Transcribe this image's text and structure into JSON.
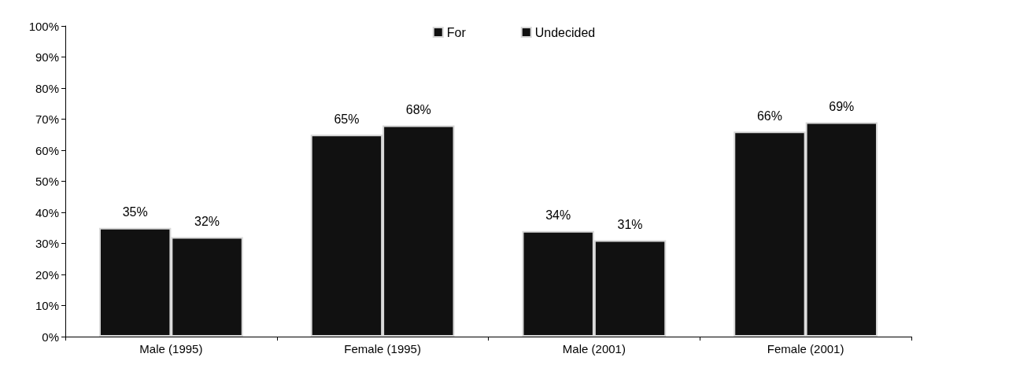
{
  "chart_data": {
    "type": "bar",
    "categories": [
      "Male (1995)",
      "Female (1995)",
      "Male (2001)",
      "Female (2001)"
    ],
    "series": [
      {
        "name": "For",
        "color": "#111111",
        "values": [
          35,
          65,
          34,
          66
        ],
        "value_labels": [
          "35%",
          "65%",
          "34%",
          "66%"
        ]
      },
      {
        "name": "Undecided",
        "color": "#111111",
        "values": [
          32,
          68,
          31,
          69
        ],
        "value_labels": [
          "32%",
          "68%",
          "31%",
          "69%"
        ]
      }
    ],
    "ylim": [
      0,
      100
    ],
    "yticks": [
      {
        "value": 0,
        "label": "0%"
      },
      {
        "value": 10,
        "label": "10%"
      },
      {
        "value": 20,
        "label": "20%"
      },
      {
        "value": 30,
        "label": "30%"
      },
      {
        "value": 40,
        "label": "40%"
      },
      {
        "value": 50,
        "label": "50%"
      },
      {
        "value": 60,
        "label": "60%"
      },
      {
        "value": 70,
        "label": "70%"
      },
      {
        "value": 80,
        "label": "80%"
      },
      {
        "value": 90,
        "label": "90%"
      },
      {
        "value": 100,
        "label": "100%"
      }
    ],
    "grid": false,
    "legend": "top"
  }
}
